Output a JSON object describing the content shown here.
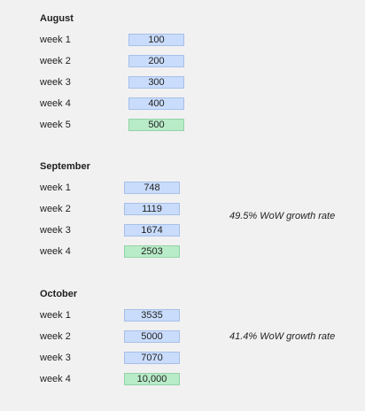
{
  "sections": [
    {
      "title": "August",
      "rows": [
        {
          "label": "week 1",
          "value": "100"
        },
        {
          "label": "week 2",
          "value": "200"
        },
        {
          "label": "week 3",
          "value": "300"
        },
        {
          "label": "week 4",
          "value": "400"
        },
        {
          "label": "week 5",
          "value": "500"
        }
      ]
    },
    {
      "title": "September",
      "rows": [
        {
          "label": "week 1",
          "value": "748"
        },
        {
          "label": "week 2",
          "value": "1119"
        },
        {
          "label": "week 3",
          "value": "1674"
        },
        {
          "label": "week 4",
          "value": "2503"
        }
      ],
      "note": "49.5% WoW growth rate"
    },
    {
      "title": "October",
      "rows": [
        {
          "label": "week 1",
          "value": "3535"
        },
        {
          "label": "week 2",
          "value": "5000"
        },
        {
          "label": "week 3",
          "value": "7070"
        },
        {
          "label": "week 4",
          "value": "10,000"
        }
      ],
      "note": "41.4% WoW growth rate"
    }
  ],
  "colors": {
    "value_box": "#c9dcfb",
    "final_week_box": "#b8ebc8",
    "background": "#f1f1f1"
  }
}
